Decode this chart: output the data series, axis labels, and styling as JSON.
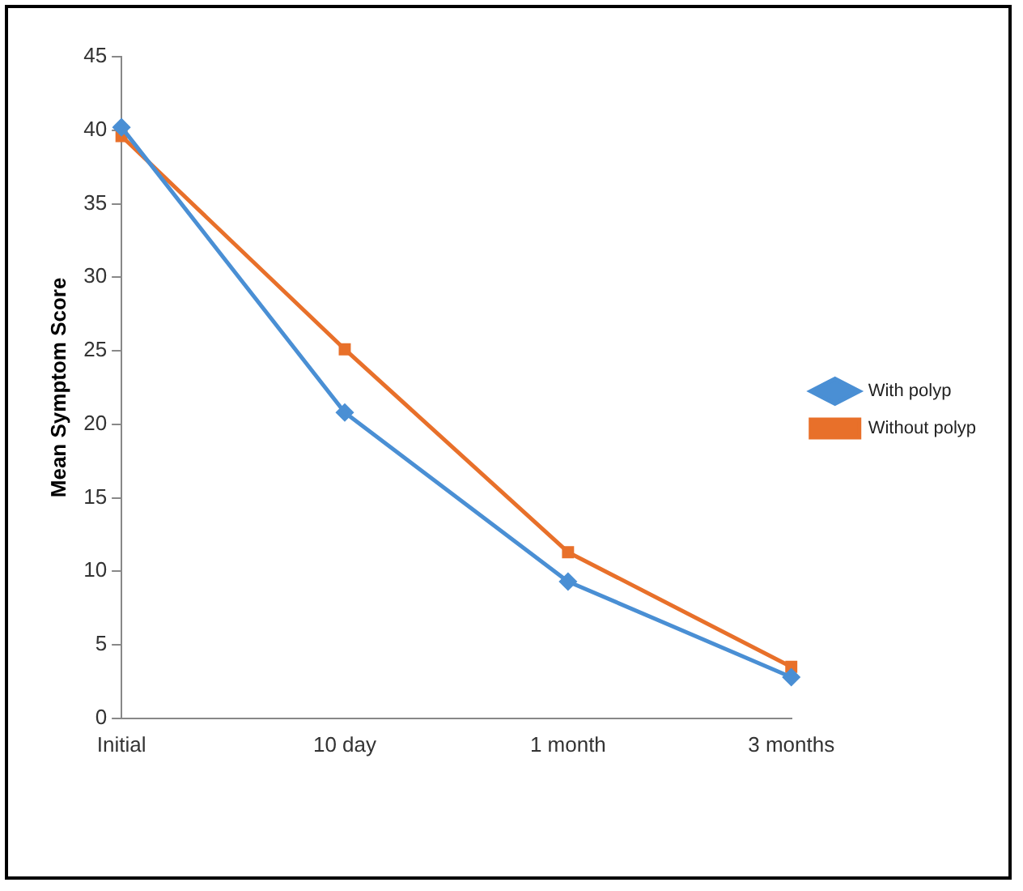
{
  "chart_data": {
    "type": "line",
    "ylabel": "Mean Symptom Score",
    "categories": [
      "Initial",
      "10 day",
      "1 month",
      "3 months"
    ],
    "series": [
      {
        "name": "With polyp",
        "color": "#4a8fd4",
        "marker": "diamond",
        "values": [
          40.2,
          20.8,
          9.3,
          2.8
        ]
      },
      {
        "name": "Without polyp",
        "color": "#e8702a",
        "marker": "square",
        "values": [
          39.6,
          25.1,
          11.3,
          3.5
        ]
      }
    ],
    "ylim": [
      0,
      45
    ],
    "yticks": [
      0,
      5,
      10,
      15,
      20,
      25,
      30,
      35,
      40,
      45
    ],
    "grid": false,
    "legend": "right"
  }
}
